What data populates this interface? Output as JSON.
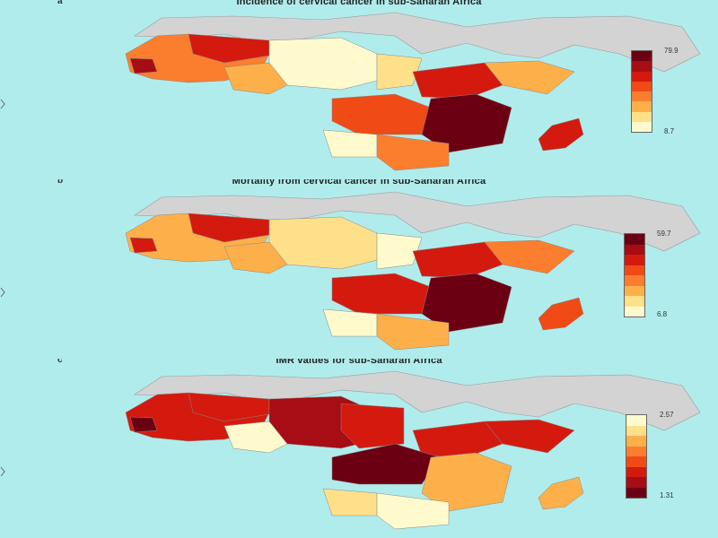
{
  "panels": [
    {
      "label": "a",
      "title": "Incidence of cervical cancer in sub-Saharan Africa",
      "legend": {
        "max": "79.9",
        "min": "8.7",
        "colors": [
          "#fffacd",
          "#ffe08a",
          "#fdb04a",
          "#fb7d2e",
          "#f04a16",
          "#d41a0f",
          "#a70d14",
          "#6b0012"
        ]
      }
    },
    {
      "label": "b",
      "title": "Mortality from cervical cancer in sub-Saharan Africa",
      "legend": {
        "max": "59.7",
        "min": "6.8",
        "colors": [
          "#fffacd",
          "#ffe08a",
          "#fdb04a",
          "#fb7d2e",
          "#f04a16",
          "#d41a0f",
          "#a70d14",
          "#6b0012"
        ]
      }
    },
    {
      "label": "c",
      "title": "IMR values for sub-Saharan Africa",
      "legend": {
        "max": "2.57",
        "min": "1.31",
        "colors": [
          "#6b0012",
          "#a70d14",
          "#d41a0f",
          "#f04a16",
          "#fb7d2e",
          "#fdb04a",
          "#ffe08a",
          "#fffacd"
        ]
      }
    }
  ],
  "colors": {
    "ocean": "#b0ecec",
    "land_gray": "#d3d3d3",
    "border": "#999999"
  }
}
